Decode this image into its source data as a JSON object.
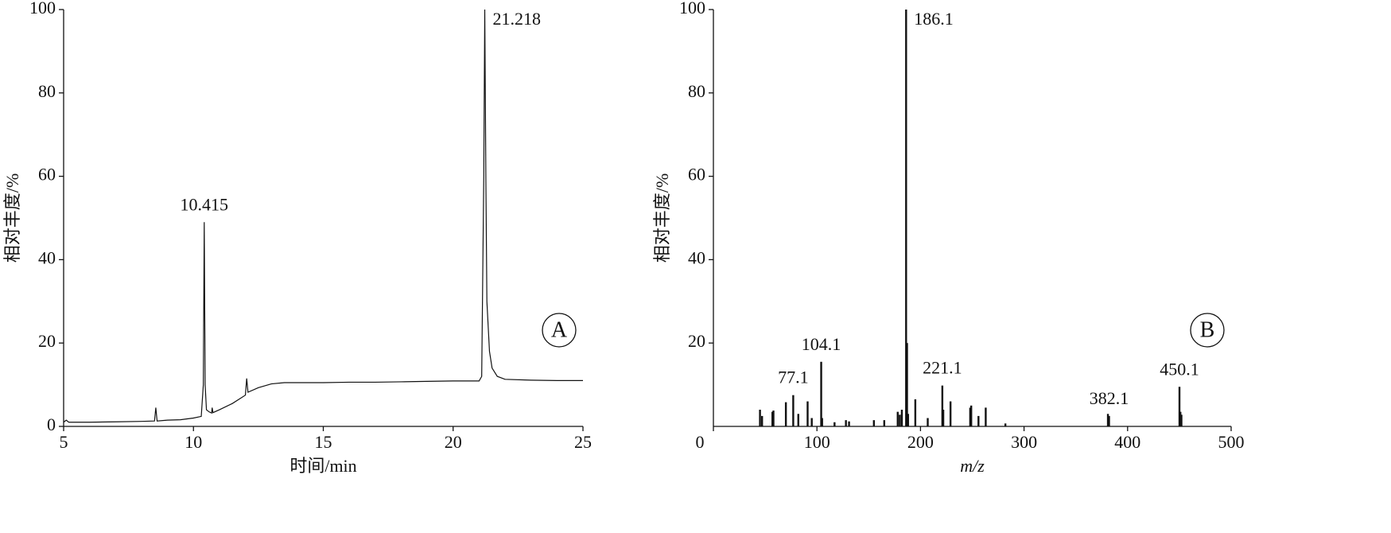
{
  "chart_data": [
    {
      "type": "line",
      "x_label": "时间/min",
      "y_label": "相对丰度/%",
      "panel_label": "A",
      "color": "#111111",
      "x": [
        5.0,
        5.1,
        5.2,
        6.0,
        7.0,
        8.0,
        8.5,
        8.55,
        8.6,
        9.0,
        9.5,
        10.0,
        10.3,
        10.38,
        10.415,
        10.45,
        10.5,
        10.6,
        10.7,
        10.72,
        10.75,
        11.0,
        11.5,
        12.0,
        12.05,
        12.1,
        12.5,
        13.0,
        13.5,
        14.0,
        15.0,
        16.0,
        17.0,
        18.0,
        19.0,
        20.0,
        21.0,
        21.1,
        21.18,
        21.218,
        21.26,
        21.3,
        21.4,
        21.5,
        21.7,
        22.0,
        23.0,
        24.0,
        25.0
      ],
      "values": [
        1.0,
        1.5,
        1.0,
        1.0,
        1.1,
        1.2,
        1.3,
        4.5,
        1.3,
        1.5,
        1.6,
        2.0,
        2.4,
        10,
        49,
        10,
        4,
        3.5,
        3.2,
        4.5,
        3.3,
        4.0,
        5.5,
        7.5,
        11.5,
        8.2,
        9.3,
        10.2,
        10.5,
        10.5,
        10.5,
        10.6,
        10.6,
        10.7,
        10.8,
        10.9,
        10.9,
        12,
        60,
        100,
        60,
        30,
        18,
        14,
        12,
        11.3,
        11.1,
        11.0,
        11.0
      ],
      "peak_labels": [
        "10.415",
        "21.218"
      ],
      "xlim": [
        5,
        25
      ],
      "xticks": [
        5,
        10,
        15,
        20,
        25
      ],
      "ylim": [
        0,
        100
      ],
      "yticks": [
        0,
        20,
        40,
        60,
        80,
        100
      ]
    },
    {
      "type": "bar",
      "x_label": "m/z",
      "y_label": "相对丰度/%",
      "panel_label": "B",
      "color": "#111111",
      "x": [
        45,
        47,
        57,
        58,
        70,
        77.1,
        82,
        91,
        95,
        104.1,
        105,
        117,
        128,
        131,
        155,
        165,
        178,
        180,
        182,
        186.1,
        187,
        188,
        195,
        207,
        221.1,
        222,
        229,
        248,
        249,
        256,
        263,
        282,
        381,
        382.1,
        450.1,
        451,
        452
      ],
      "values": [
        4,
        2.5,
        3.5,
        3.8,
        5.8,
        7.5,
        3,
        6,
        2,
        15.5,
        2,
        1,
        1.5,
        1.2,
        1.5,
        1.5,
        3.5,
        2.8,
        4,
        100,
        20,
        3,
        6.5,
        2,
        9.8,
        4,
        6,
        4.5,
        5,
        2.5,
        4.5,
        0.7,
        3,
        2.5,
        9.5,
        3.5,
        2.8
      ],
      "peak_labels": [
        "186.1",
        "104.1",
        "77.1",
        "221.1",
        "382.1",
        "450.1"
      ],
      "xlim": [
        0,
        500
      ],
      "xticks": [
        0,
        100,
        200,
        300,
        400,
        500
      ],
      "ylim": [
        0,
        100
      ],
      "yticks": [
        20,
        40,
        60,
        80,
        100
      ]
    }
  ]
}
